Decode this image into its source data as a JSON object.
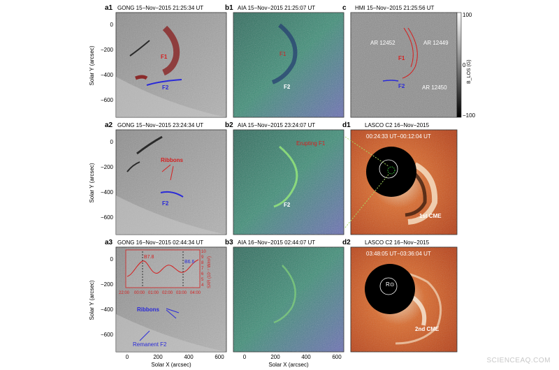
{
  "panels": {
    "a1": {
      "id": "a1",
      "title": "GONG 15−Nov−2015 21:25:34 UT",
      "labels": [
        "F1",
        "F2"
      ]
    },
    "a2": {
      "id": "a2",
      "title": "GONG 15−Nov−2015 23:24:34 UT",
      "labels": [
        "Ribbons",
        "F2"
      ]
    },
    "a3": {
      "id": "a3",
      "title": "GONG 16−Nov−2015 02:44:34 UT",
      "labels": [
        "Ribbons",
        "Remanent F2"
      ],
      "inset": {
        "markers": [
          "B7.8",
          "B6.6"
        ],
        "x_ticks": [
          "22:00",
          "00:00",
          "01:00",
          "02:00",
          "03:00",
          "04:00"
        ],
        "y_ticks": [
          "10",
          "9",
          "8",
          "7",
          "6",
          "5",
          "4"
        ],
        "ylabel": "SXR (10⁻⁷ W/m²)"
      }
    },
    "b1": {
      "id": "b1",
      "title": "AIA 15−Nov−2015 21:25:07 UT",
      "labels": [
        "F1",
        "F2"
      ]
    },
    "b2": {
      "id": "b2",
      "title": "AIA 15−Nov−2015 23:24:07 UT",
      "labels": [
        "Erupting F1",
        "F2"
      ]
    },
    "b3": {
      "id": "b3",
      "title": "AIA 16−Nov−2015 02:44:07 UT",
      "labels": []
    },
    "c": {
      "id": "c",
      "title": "HMI 15−Nov−2015 21:25:56 UT",
      "labels": [
        "AR 12452",
        "AR 12449",
        "AR 12450",
        "F1",
        "F2"
      ],
      "colorbar": {
        "max": "100",
        "zero": "0",
        "min": "−100",
        "label": "B_LOS (G)"
      }
    },
    "d1": {
      "id": "d1",
      "title": "LASCO C2  16−Nov−2015",
      "subtitle": "00:24:33 UT−00:12:04 UT",
      "labels": [
        "1st CME"
      ]
    },
    "d2": {
      "id": "d2",
      "title": "LASCO C2  16−Nov−2015",
      "subtitle": "03:48:05 UT−03:36:04 UT",
      "labels": [
        "R⊙",
        "2nd CME"
      ]
    }
  },
  "axes": {
    "ylabel": "Solar Y (arcsec)",
    "xlabel": "Solar X (arcsec)",
    "y_ticks": [
      "0",
      "−200",
      "−400",
      "−600"
    ],
    "x_ticks": [
      "0",
      "200",
      "400",
      "600"
    ]
  },
  "colors": {
    "red_label": "#d42020",
    "blue_label": "#2a2ad8",
    "lasco_bg": "#c8461e",
    "hmi_bg": "#8a8a8a"
  },
  "watermark": "SCIENCEAQ.COM"
}
